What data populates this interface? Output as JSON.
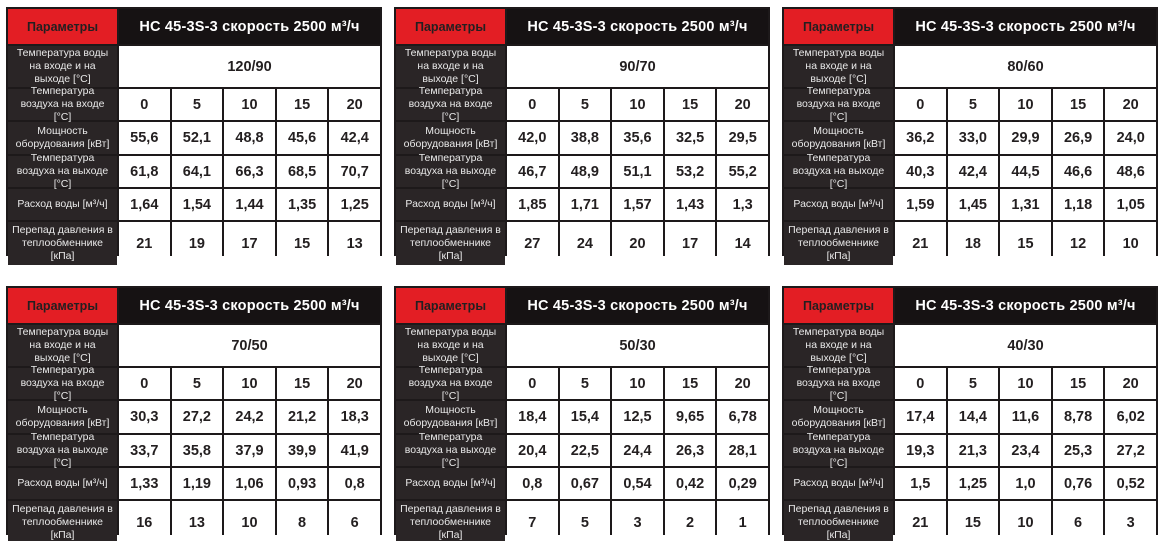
{
  "shared": {
    "params_label": "Параметры",
    "row_labels": {
      "water_temp": "Температура воды на входе и на выходе [°C]",
      "air_in": "Температура воздуха на входе [°C]",
      "power": "Мощность оборудования [кВт]",
      "air_out": "Температура воздуха на выходе [°C]",
      "water_flow": "Расход воды [м³/ч]",
      "pressure": "Перепад давления в теплообменнике [кПа]"
    },
    "colors": {
      "accent_red": "#e31e24",
      "label_bg": "#2a2526",
      "title_bg": "#161213",
      "value_text": "#231f20"
    }
  },
  "tables": [
    {
      "title": "НС 45-3S-3 скорость 2500 м³/ч",
      "water_temp": "120/90",
      "air_in": [
        "0",
        "5",
        "10",
        "15",
        "20"
      ],
      "power": [
        "55,6",
        "52,1",
        "48,8",
        "45,6",
        "42,4"
      ],
      "air_out": [
        "61,8",
        "64,1",
        "66,3",
        "68,5",
        "70,7"
      ],
      "water_flow": [
        "1,64",
        "1,54",
        "1,44",
        "1,35",
        "1,25"
      ],
      "pressure": [
        "21",
        "19",
        "17",
        "15",
        "13"
      ]
    },
    {
      "title": "НС 45-3S-3 скорость 2500 м³/ч",
      "water_temp": "90/70",
      "air_in": [
        "0",
        "5",
        "10",
        "15",
        "20"
      ],
      "power": [
        "42,0",
        "38,8",
        "35,6",
        "32,5",
        "29,5"
      ],
      "air_out": [
        "46,7",
        "48,9",
        "51,1",
        "53,2",
        "55,2"
      ],
      "water_flow": [
        "1,85",
        "1,71",
        "1,57",
        "1,43",
        "1,3"
      ],
      "pressure": [
        "27",
        "24",
        "20",
        "17",
        "14"
      ]
    },
    {
      "title": "НС 45-3S-3 скорость 2500 м³/ч",
      "water_temp": "80/60",
      "air_in": [
        "0",
        "5",
        "10",
        "15",
        "20"
      ],
      "power": [
        "36,2",
        "33,0",
        "29,9",
        "26,9",
        "24,0"
      ],
      "air_out": [
        "40,3",
        "42,4",
        "44,5",
        "46,6",
        "48,6"
      ],
      "water_flow": [
        "1,59",
        "1,45",
        "1,31",
        "1,18",
        "1,05"
      ],
      "pressure": [
        "21",
        "18",
        "15",
        "12",
        "10"
      ]
    },
    {
      "title": "НС 45-3S-3 скорость 2500 м³/ч",
      "water_temp": "70/50",
      "air_in": [
        "0",
        "5",
        "10",
        "15",
        "20"
      ],
      "power": [
        "30,3",
        "27,2",
        "24,2",
        "21,2",
        "18,3"
      ],
      "air_out": [
        "33,7",
        "35,8",
        "37,9",
        "39,9",
        "41,9"
      ],
      "water_flow": [
        "1,33",
        "1,19",
        "1,06",
        "0,93",
        "0,8"
      ],
      "pressure": [
        "16",
        "13",
        "10",
        "8",
        "6"
      ]
    },
    {
      "title": "НС 45-3S-3 скорость 2500 м³/ч",
      "water_temp": "50/30",
      "air_in": [
        "0",
        "5",
        "10",
        "15",
        "20"
      ],
      "power": [
        "18,4",
        "15,4",
        "12,5",
        "9,65",
        "6,78"
      ],
      "air_out": [
        "20,4",
        "22,5",
        "24,4",
        "26,3",
        "28,1"
      ],
      "water_flow": [
        "0,8",
        "0,67",
        "0,54",
        "0,42",
        "0,29"
      ],
      "pressure": [
        "7",
        "5",
        "3",
        "2",
        "1"
      ]
    },
    {
      "title": "НС 45-3S-3 скорость 2500 м³/ч",
      "water_temp": "40/30",
      "air_in": [
        "0",
        "5",
        "10",
        "15",
        "20"
      ],
      "power": [
        "17,4",
        "14,4",
        "11,6",
        "8,78",
        "6,02"
      ],
      "air_out": [
        "19,3",
        "21,3",
        "23,4",
        "25,3",
        "27,2"
      ],
      "water_flow": [
        "1,5",
        "1,25",
        "1,0",
        "0,76",
        "0,52"
      ],
      "pressure": [
        "21",
        "15",
        "10",
        "6",
        "3"
      ]
    }
  ]
}
